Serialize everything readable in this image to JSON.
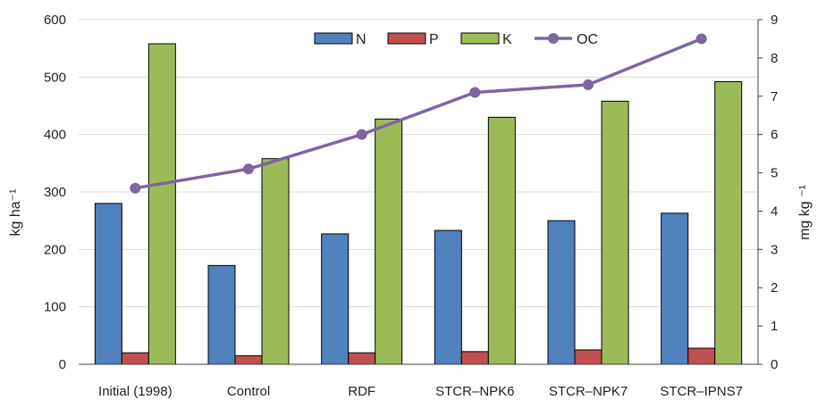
{
  "chart_data": {
    "type": "bar",
    "categories": [
      "Initial (1998)",
      "Control",
      "RDF",
      "STCR–NPK6",
      "STCR–NPK7",
      "STCR–IPNS7"
    ],
    "series": [
      {
        "name": "N",
        "axis": "left",
        "kind": "bar",
        "color": "#4f81bd",
        "values": [
          280,
          172,
          227,
          233,
          250,
          263
        ]
      },
      {
        "name": "P",
        "axis": "left",
        "kind": "bar",
        "color": "#c0504d",
        "values": [
          20,
          15,
          20,
          22,
          25,
          28
        ]
      },
      {
        "name": "K",
        "axis": "left",
        "kind": "bar",
        "color": "#9bbb59",
        "values": [
          558,
          358,
          427,
          430,
          458,
          492
        ]
      },
      {
        "name": "OC",
        "axis": "right",
        "kind": "line",
        "color": "#8064a2",
        "values": [
          4.6,
          5.1,
          6.0,
          7.1,
          7.3,
          8.5
        ]
      }
    ],
    "ylabel": "kg ha⁻¹",
    "y2label": "mg kg ⁻¹",
    "ylim": [
      0,
      600
    ],
    "y2lim": [
      0,
      9
    ],
    "yticks": [
      "0",
      "100",
      "200",
      "300",
      "400",
      "500",
      "600"
    ],
    "y2ticks": [
      "0",
      "1",
      "2",
      "3",
      "4",
      "5",
      "6",
      "7",
      "8",
      "9"
    ],
    "grid": true,
    "legend_position": "top-center"
  }
}
